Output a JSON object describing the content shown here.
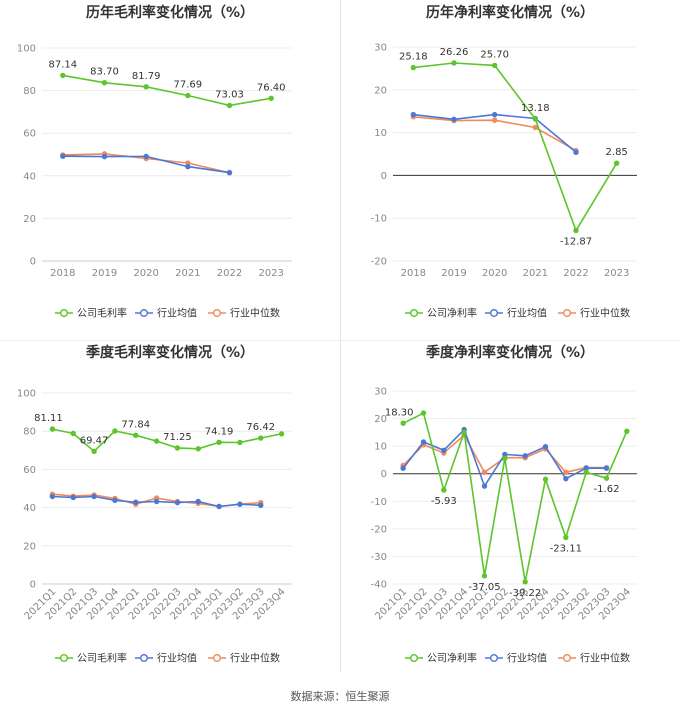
{
  "footer": {
    "source": "数据来源：恒生聚源"
  },
  "colors": {
    "company": "#5cc52b",
    "industry_avg": "#4a78d6",
    "industry_median": "#f08a5d",
    "grid": "#ececec",
    "zero_axis": "#333333"
  },
  "legend_labels": {
    "industry_avg": "行业均值",
    "industry_median": "行业中位数"
  },
  "chart_data": [
    {
      "type": "line",
      "title": "历年毛利率变化情况（%）",
      "categories": [
        "2018",
        "2019",
        "2020",
        "2021",
        "2022",
        "2023"
      ],
      "ylim": [
        0,
        100
      ],
      "yticks": [
        0,
        20,
        40,
        60,
        80,
        100
      ],
      "grid": true,
      "legend_position": "bottom",
      "rotate_x": false,
      "series": [
        {
          "name": "公司毛利率",
          "key": "company",
          "values": [
            87.14,
            83.7,
            81.79,
            77.69,
            73.03,
            76.4
          ],
          "labels": [
            "87.14",
            "83.70",
            "81.79",
            "77.69",
            "73.03",
            "76.40"
          ]
        },
        {
          "name": "行业均值",
          "key": "industry_avg",
          "values": [
            49.2,
            49.0,
            49.1,
            44.3,
            41.5,
            null
          ]
        },
        {
          "name": "行业中位数",
          "key": "industry_median",
          "values": [
            49.8,
            50.3,
            48.1,
            46.0,
            41.4,
            null
          ]
        }
      ]
    },
    {
      "type": "line",
      "title": "历年净利率变化情况（%）",
      "categories": [
        "2018",
        "2019",
        "2020",
        "2021",
        "2022",
        "2023"
      ],
      "ylim": [
        -20,
        30
      ],
      "yticks": [
        -20,
        -10,
        0,
        10,
        20,
        30
      ],
      "grid": true,
      "legend_position": "bottom",
      "rotate_x": false,
      "series": [
        {
          "name": "公司净利率",
          "key": "company",
          "values": [
            25.18,
            26.26,
            25.7,
            13.18,
            -12.87,
            2.85
          ],
          "labels": [
            "25.18",
            "26.26",
            "25.70",
            "13.18",
            "-12.87",
            "2.85"
          ]
        },
        {
          "name": "行业均值",
          "key": "industry_avg",
          "values": [
            14.2,
            13.1,
            14.2,
            13.3,
            5.4,
            null
          ]
        },
        {
          "name": "行业中位数",
          "key": "industry_median",
          "values": [
            13.7,
            12.8,
            12.9,
            11.2,
            5.8,
            null
          ]
        }
      ]
    },
    {
      "type": "line",
      "title": "季度毛利率变化情况（%）",
      "categories": [
        "2021Q1",
        "2021Q2",
        "2021Q3",
        "2021Q4",
        "2022Q1",
        "2022Q2",
        "2022Q3",
        "2022Q4",
        "2023Q1",
        "2023Q2",
        "2023Q3",
        "2023Q4"
      ],
      "ylim": [
        0,
        100
      ],
      "yticks": [
        0,
        20,
        40,
        60,
        80,
        100
      ],
      "grid": true,
      "legend_position": "bottom",
      "rotate_x": true,
      "series": [
        {
          "name": "公司毛利率",
          "key": "company",
          "values": [
            81.11,
            78.8,
            69.47,
            80.1,
            77.84,
            74.8,
            71.25,
            70.8,
            74.19,
            74.1,
            76.42,
            78.6
          ],
          "labels": [
            "81.11",
            "",
            "69.47",
            "",
            "77.84",
            "",
            "71.25",
            "",
            "74.19",
            "",
            "76.42",
            ""
          ]
        },
        {
          "name": "行业均值",
          "key": "industry_avg",
          "values": [
            45.8,
            45.3,
            45.8,
            43.8,
            42.8,
            43.2,
            42.6,
            43.2,
            40.6,
            41.8,
            41.2,
            null
          ]
        },
        {
          "name": "行业中位数",
          "key": "industry_median",
          "values": [
            47.0,
            46.0,
            46.6,
            44.8,
            41.8,
            45.0,
            43.2,
            42.2,
            40.6,
            41.8,
            42.6,
            null
          ]
        }
      ]
    },
    {
      "type": "line",
      "title": "季度净利率变化情况（%）",
      "categories": [
        "2021Q1",
        "2021Q2",
        "2021Q3",
        "2021Q4",
        "2022Q1",
        "2022Q2",
        "2022Q3",
        "2022Q4",
        "2023Q1",
        "2023Q2",
        "2023Q3",
        "2023Q4"
      ],
      "ylim": [
        -40,
        30
      ],
      "yticks": [
        -40,
        -30,
        -20,
        -10,
        0,
        10,
        20,
        30
      ],
      "grid": true,
      "legend_position": "bottom",
      "rotate_x": true,
      "series": [
        {
          "name": "公司净利率",
          "key": "company",
          "values": [
            18.3,
            22.0,
            -5.93,
            15.0,
            -37.05,
            5.5,
            -39.22,
            -2.0,
            -23.11,
            0.5,
            -1.62,
            15.4
          ],
          "labels": [
            "18.30",
            "",
            "-5.93",
            "",
            "-37.05",
            "",
            "-39.22",
            "",
            "-23.11",
            "",
            "-1.62",
            ""
          ]
        },
        {
          "name": "行业均值",
          "key": "industry_avg",
          "values": [
            2.0,
            11.5,
            8.5,
            16.0,
            -4.5,
            7.0,
            6.5,
            9.8,
            -1.8,
            2.0,
            2.0,
            null
          ]
        },
        {
          "name": "行业中位数",
          "key": "industry_median",
          "values": [
            3.0,
            10.5,
            7.5,
            14.0,
            0.5,
            5.8,
            5.8,
            9.0,
            0.5,
            2.2,
            2.2,
            null
          ]
        }
      ]
    }
  ]
}
